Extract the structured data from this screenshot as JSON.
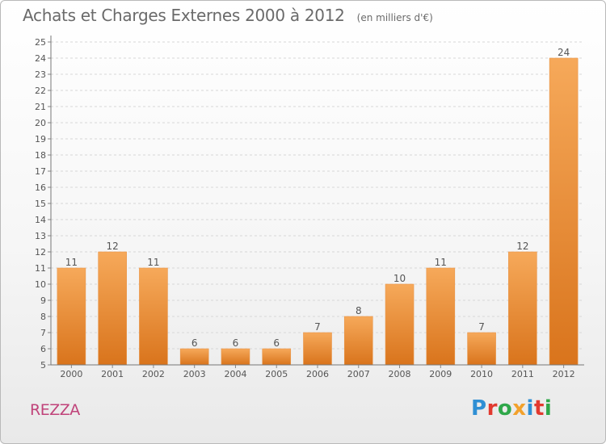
{
  "header": {
    "title": "Achats et Charges Externes 2000 à 2012",
    "unit": "(en milliers d'€)"
  },
  "footer": {
    "commune": "REZZA",
    "logo_text": "Proxiti",
    "logo_letters": [
      {
        "char": "P",
        "color": "#2f8fd4"
      },
      {
        "char": "r",
        "color": "#e2392f"
      },
      {
        "char": "o",
        "color": "#2fa84a"
      },
      {
        "char": "x",
        "color": "#f2a12c"
      },
      {
        "char": "i",
        "color": "#2f8fd4"
      },
      {
        "char": "t",
        "color": "#e2392f"
      },
      {
        "char": "i",
        "color": "#2fa84a"
      }
    ]
  },
  "colors": {
    "bar_top": "#f6a95a",
    "bar_bottom": "#d9741c",
    "grid": "#d7d7d7",
    "axis_text": "#555555",
    "title": "#6a6a6a",
    "commune": "#c0437a"
  },
  "chart_data": {
    "type": "bar",
    "title": "Achats et Charges Externes 2000 à 2012",
    "subtitle": "(en milliers d'€)",
    "categories": [
      "2000",
      "2001",
      "2002",
      "2003",
      "2004",
      "2005",
      "2006",
      "2007",
      "2008",
      "2009",
      "2010",
      "2011",
      "2012"
    ],
    "values": [
      11,
      12,
      11,
      6,
      6,
      6,
      7,
      8,
      10,
      11,
      7,
      12,
      24
    ],
    "ylim": [
      5,
      25
    ],
    "yticks": [
      5,
      6,
      7,
      8,
      9,
      10,
      11,
      12,
      13,
      14,
      15,
      16,
      17,
      18,
      19,
      20,
      21,
      22,
      23,
      24,
      25
    ],
    "grid": true,
    "data_labels": true
  }
}
